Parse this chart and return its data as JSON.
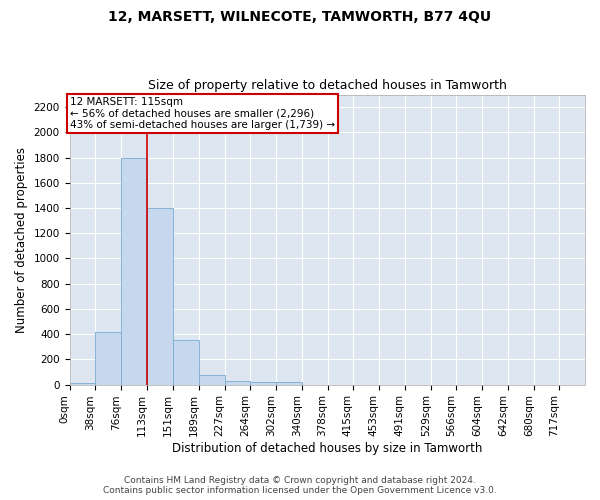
{
  "title": "12, MARSETT, WILNECOTE, TAMWORTH, B77 4QU",
  "subtitle": "Size of property relative to detached houses in Tamworth",
  "xlabel": "Distribution of detached houses by size in Tamworth",
  "ylabel": "Number of detached properties",
  "bar_color": "#c5d8ee",
  "bar_edge_color": "#7aaad0",
  "background_color": "#dde6f0",
  "grid_color": "#ffffff",
  "annotation_box_color": "#cc0000",
  "vline_color": "#cc0000",
  "vline_x": 113,
  "annotation_text": "12 MARSETT: 115sqm\n← 56% of detached houses are smaller (2,296)\n43% of semi-detached houses are larger (1,739) →",
  "bin_edges": [
    0,
    38,
    76,
    113,
    151,
    189,
    227,
    264,
    302,
    340,
    378,
    415,
    453,
    491,
    529,
    566,
    604,
    642,
    680,
    717,
    755
  ],
  "bar_heights": [
    15,
    420,
    1800,
    1400,
    350,
    75,
    30,
    20,
    20,
    0,
    0,
    0,
    0,
    0,
    0,
    0,
    0,
    0,
    0,
    0
  ],
  "ylim": [
    0,
    2300
  ],
  "yticks": [
    0,
    200,
    400,
    600,
    800,
    1000,
    1200,
    1400,
    1600,
    1800,
    2000,
    2200
  ],
  "footer_text": "Contains HM Land Registry data © Crown copyright and database right 2024.\nContains public sector information licensed under the Open Government Licence v3.0.",
  "title_fontsize": 10,
  "subtitle_fontsize": 9,
  "xlabel_fontsize": 8.5,
  "ylabel_fontsize": 8.5,
  "tick_fontsize": 7.5,
  "annotation_fontsize": 7.5,
  "footer_fontsize": 6.5
}
